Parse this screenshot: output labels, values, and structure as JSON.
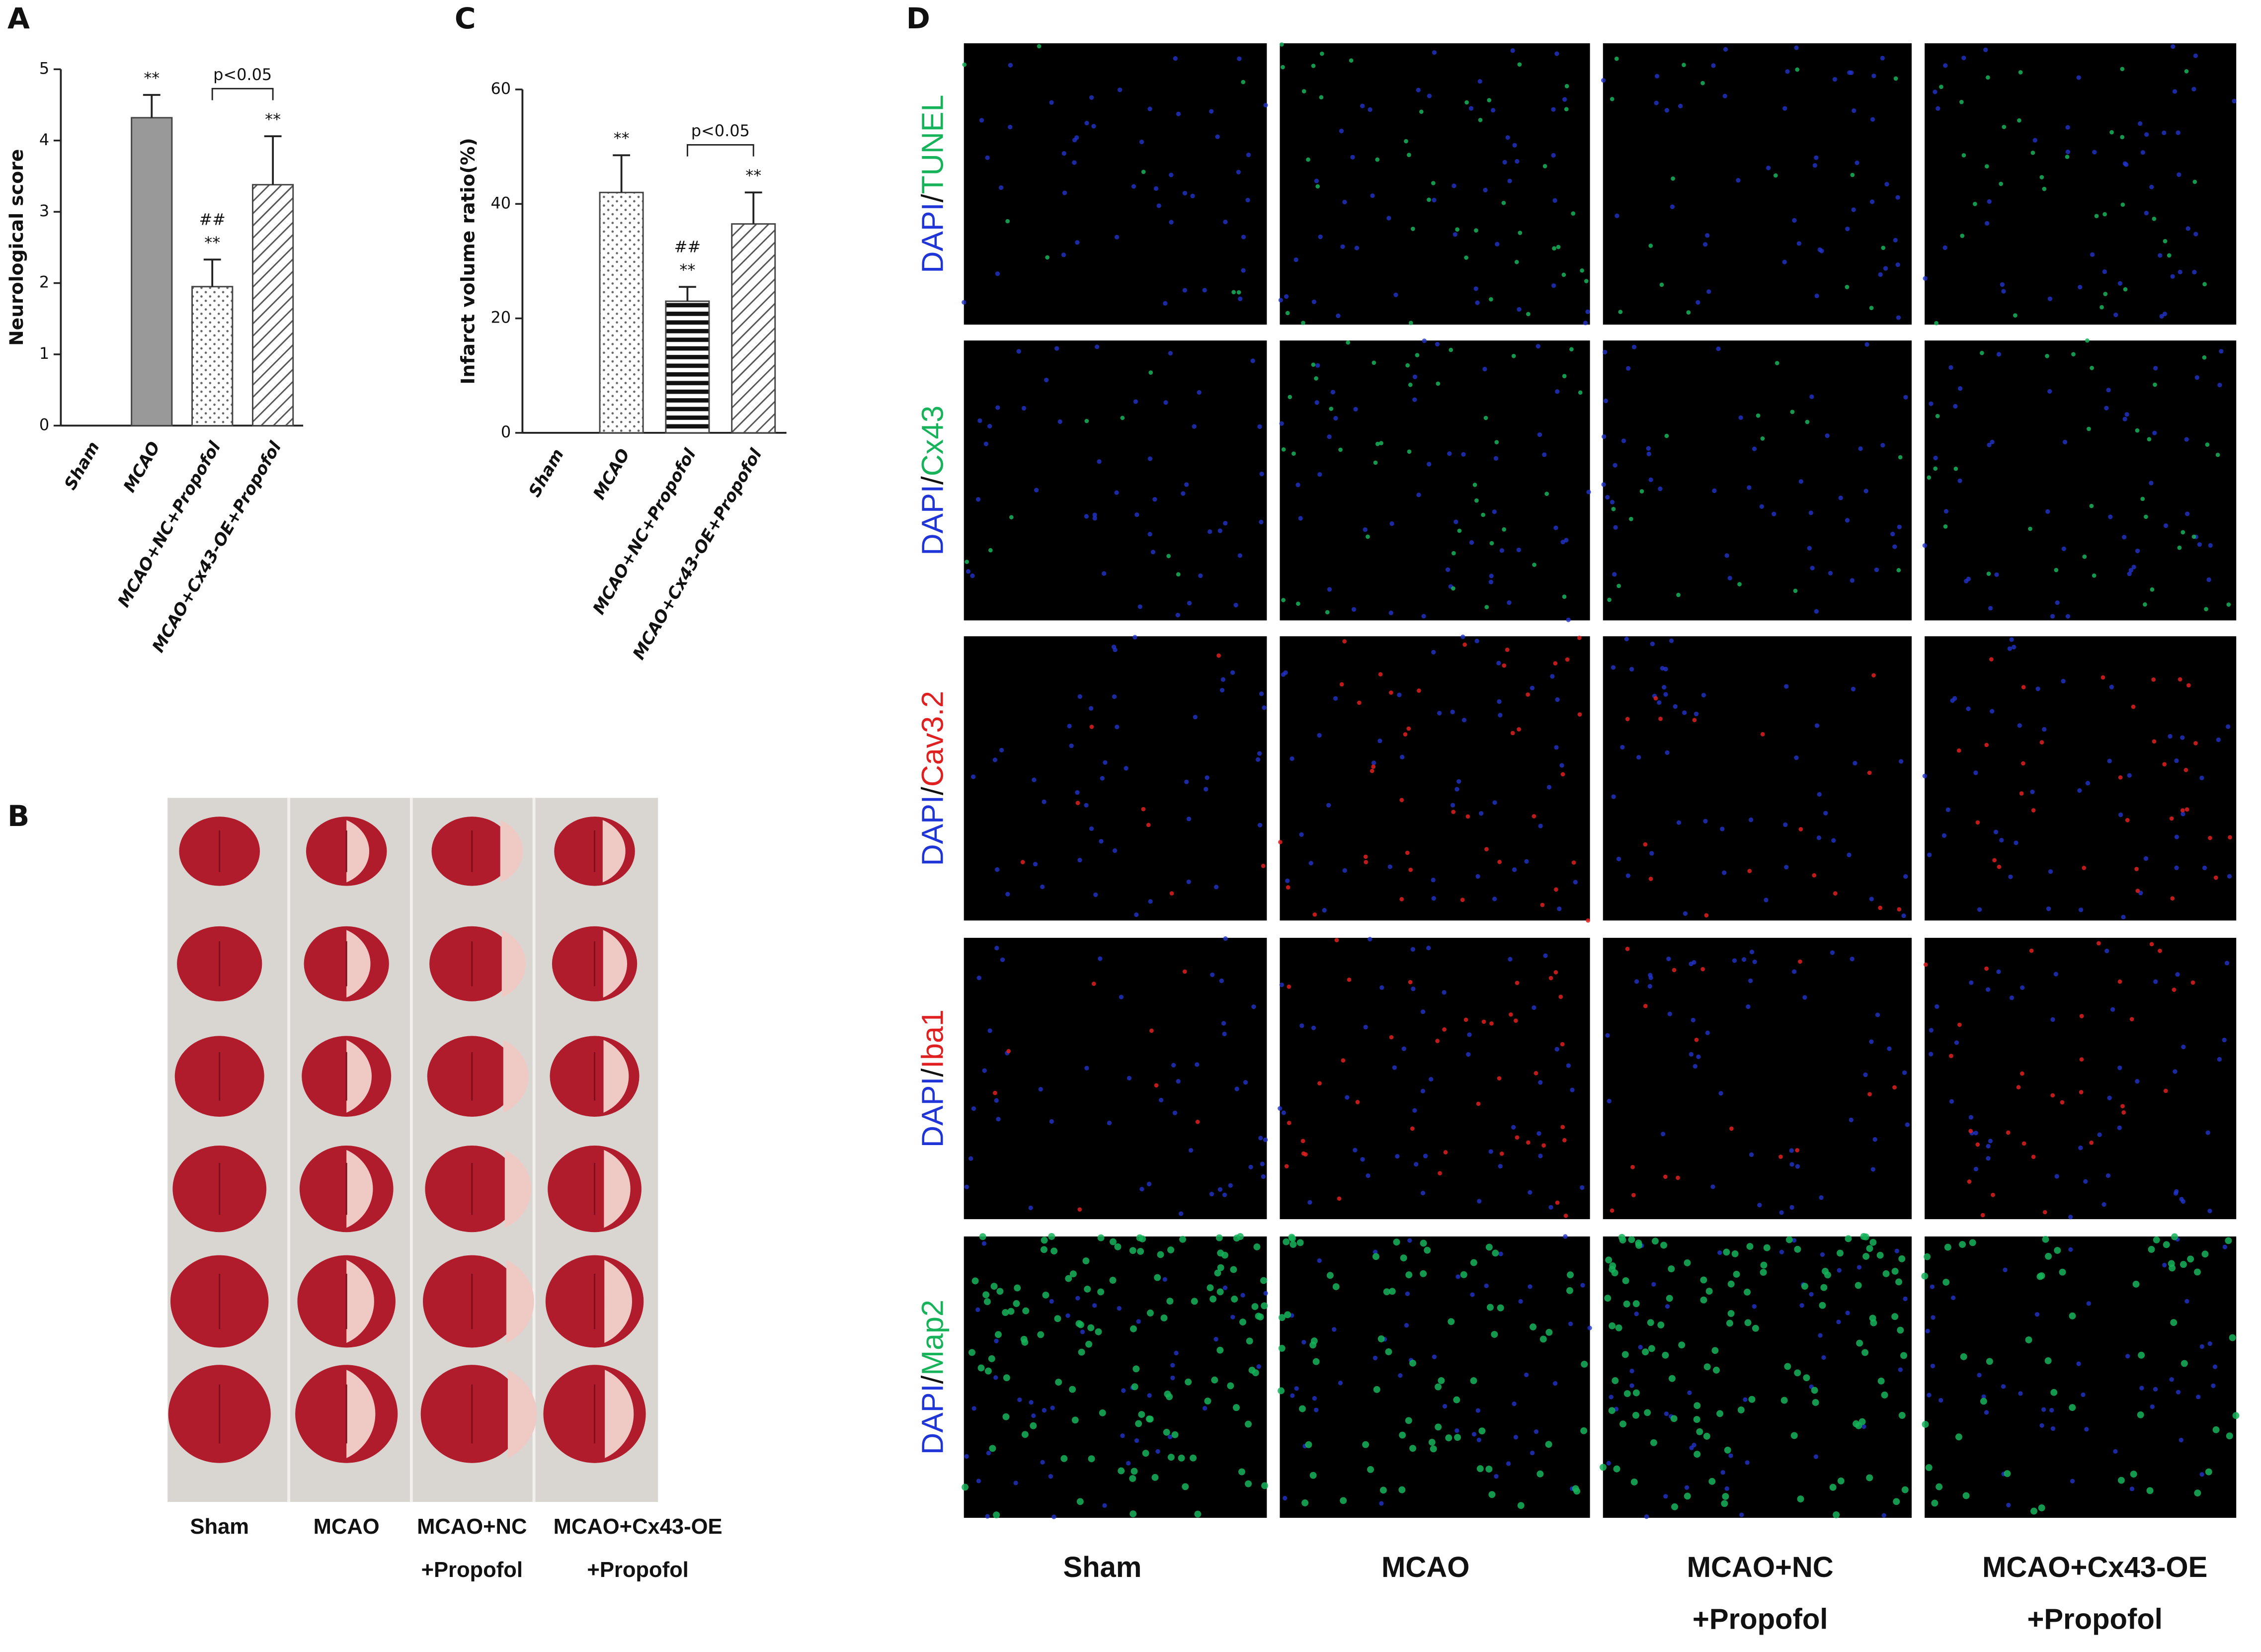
{
  "chart_data": [
    {
      "type": "bar",
      "panel_label": "A",
      "ylabel": "Neurological score",
      "categories": [
        "Sham",
        "MCAO",
        "MCAO+NC+Propofol",
        "MCAO+Cx43-OE+Propofol"
      ],
      "values": [
        0,
        4.32,
        1.95,
        3.38
      ],
      "errors": [
        null,
        0.32,
        0.38,
        0.68
      ],
      "annotations": [
        null,
        [
          "**"
        ],
        [
          "##",
          "**"
        ],
        [
          "**"
        ]
      ],
      "comparison": {
        "bars": [
          2,
          3
        ],
        "label": "p<0.05"
      },
      "patterns": [
        "none",
        "solid",
        "dots",
        "diagonal"
      ],
      "color": "#999999",
      "ylim": [
        0,
        5
      ],
      "yticks": [
        0,
        1,
        2,
        3,
        4,
        5
      ]
    },
    {
      "type": "bar",
      "panel_label": "C",
      "ylabel": "Infarct volume ratio(%)",
      "categories": [
        "Sham",
        "MCAO",
        "MCAO+NC+Propofol",
        "MCAO+Cx43-OE+Propofol"
      ],
      "values": [
        0,
        42,
        23,
        36.5
      ],
      "errors": [
        null,
        6.5,
        2.5,
        5.5
      ],
      "annotations": [
        null,
        [
          "**"
        ],
        [
          "##",
          "**"
        ],
        [
          "**"
        ]
      ],
      "comparison": {
        "bars": [
          2,
          3
        ],
        "label": "p<0.05"
      },
      "patterns": [
        "none",
        "dots",
        "horizontal",
        "diagonal"
      ],
      "color": "#999999",
      "ylim": [
        0,
        60
      ],
      "yticks": [
        0,
        20,
        40,
        60
      ]
    }
  ],
  "panel_b": {
    "label": "B",
    "columns": [
      [
        "Sham"
      ],
      [
        "MCAO"
      ],
      [
        "MCAO+NC",
        "+Propofol"
      ],
      [
        "MCAO+Cx43-OE",
        "+Propofol"
      ]
    ]
  },
  "panel_d": {
    "label": "D",
    "counterstain": "DAPI",
    "counterstain_color": "#1f35d8",
    "separator": "/",
    "rows": [
      {
        "stain": "TUNEL",
        "color": "#16b35a"
      },
      {
        "stain": "Cx43",
        "color": "#16b35a"
      },
      {
        "stain": "Cav3.2",
        "color": "#e02020"
      },
      {
        "stain": "Iba1",
        "color": "#e02020"
      },
      {
        "stain": "Map2",
        "color": "#16b35a"
      }
    ],
    "columns": [
      [
        "Sham"
      ],
      [
        "MCAO"
      ],
      [
        "MCAO+NC",
        "+Propofol"
      ],
      [
        "MCAO+Cx43-OE",
        "+Propofol"
      ]
    ]
  }
}
